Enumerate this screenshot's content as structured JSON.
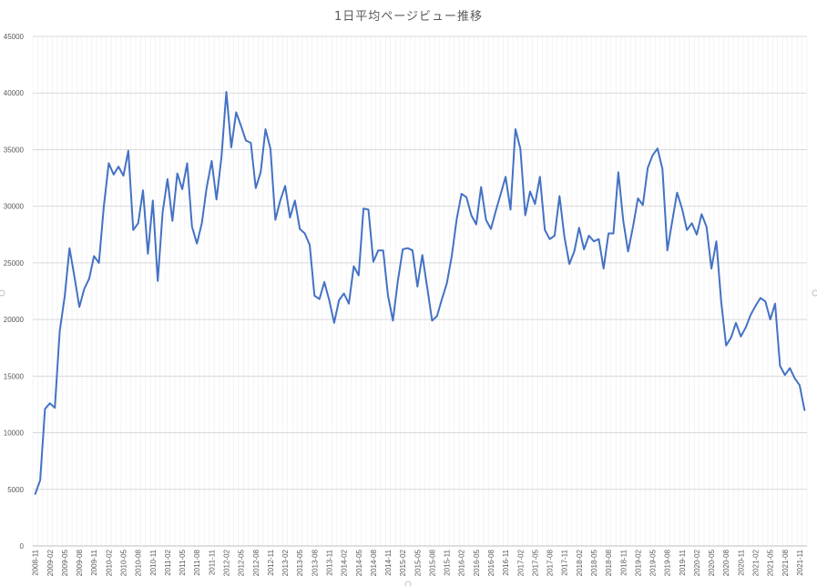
{
  "chart_data": {
    "type": "line",
    "title": "1日平均ページビュー推移",
    "xlabel": "",
    "ylabel": "",
    "ylim": [
      0,
      45000
    ],
    "yticks": [
      0,
      5000,
      10000,
      15000,
      20000,
      25000,
      30000,
      35000,
      40000,
      45000
    ],
    "grid": true,
    "legend": "none",
    "series_color": "#4472c4",
    "x": [
      "2008-11",
      "2008-12",
      "2009-01",
      "2009-02",
      "2009-03",
      "2009-04",
      "2009-05",
      "2009-06",
      "2009-07",
      "2009-08",
      "2009-09",
      "2009-10",
      "2009-11",
      "2009-12",
      "2010-01",
      "2010-02",
      "2010-03",
      "2010-04",
      "2010-05",
      "2010-06",
      "2010-07",
      "2010-08",
      "2010-09",
      "2010-10",
      "2010-11",
      "2010-12",
      "2011-01",
      "2011-02",
      "2011-03",
      "2011-04",
      "2011-05",
      "2011-06",
      "2011-07",
      "2011-08",
      "2011-09",
      "2011-10",
      "2011-11",
      "2011-12",
      "2012-01",
      "2012-02",
      "2012-03",
      "2012-04",
      "2012-05",
      "2012-06",
      "2012-07",
      "2012-08",
      "2012-09",
      "2012-10",
      "2012-11",
      "2012-12",
      "2013-01",
      "2013-02",
      "2013-03",
      "2013-04",
      "2013-05",
      "2013-06",
      "2013-07",
      "2013-08",
      "2013-09",
      "2013-10",
      "2013-11",
      "2013-12",
      "2014-01",
      "2014-02",
      "2014-03",
      "2014-04",
      "2014-05",
      "2014-06",
      "2014-07",
      "2014-08",
      "2014-09",
      "2014-10",
      "2014-11",
      "2014-12",
      "2015-01",
      "2015-02",
      "2015-03",
      "2015-04",
      "2015-05",
      "2015-06",
      "2015-07",
      "2015-08",
      "2015-09",
      "2015-10",
      "2015-11",
      "2015-12",
      "2016-01",
      "2016-02",
      "2016-03",
      "2016-04",
      "2016-05",
      "2016-06",
      "2016-07",
      "2016-08",
      "2016-09",
      "2016-10",
      "2016-11",
      "2016-12",
      "2017-01",
      "2017-02",
      "2017-03",
      "2017-04",
      "2017-05",
      "2017-06",
      "2017-07",
      "2017-08",
      "2017-09",
      "2017-10",
      "2017-11",
      "2017-12",
      "2018-01",
      "2018-02",
      "2018-03",
      "2018-04",
      "2018-05",
      "2018-06",
      "2018-07",
      "2018-08",
      "2018-09",
      "2018-10",
      "2018-11",
      "2018-12",
      "2019-01",
      "2019-02",
      "2019-03",
      "2019-04",
      "2019-05",
      "2019-06",
      "2019-07",
      "2019-08",
      "2019-09",
      "2019-10",
      "2019-11",
      "2019-12",
      "2020-01",
      "2020-02",
      "2020-03",
      "2020-04",
      "2020-05",
      "2020-06",
      "2020-07",
      "2020-08",
      "2020-09",
      "2020-10",
      "2020-11",
      "2020-12",
      "2021-01",
      "2021-02",
      "2021-03",
      "2021-04",
      "2021-05",
      "2021-06",
      "2021-07",
      "2021-08",
      "2021-09",
      "2021-10",
      "2021-11",
      "2021-12"
    ],
    "x_tick_labels": [
      "2008-11",
      "2009-02",
      "2009-05",
      "2009-08",
      "2009-11",
      "2010-02",
      "2010-05",
      "2010-08",
      "2010-11",
      "2011-02",
      "2011-05",
      "2011-08",
      "2011-11",
      "2012-02",
      "2012-05",
      "2012-08",
      "2012-11",
      "2013-02",
      "2013-05",
      "2013-08",
      "2013-11",
      "2014-02",
      "2014-05",
      "2014-08",
      "2014-11",
      "2015-02",
      "2015-05",
      "2015-08",
      "2015-11",
      "2016-02",
      "2016-05",
      "2016-08",
      "2016-11",
      "2017-02",
      "2017-05",
      "2017-08",
      "2017-11",
      "2018-02",
      "2018-05",
      "2018-08",
      "2018-11",
      "2019-02",
      "2019-05",
      "2019-08",
      "2019-11",
      "2020-02",
      "2020-05",
      "2020-08",
      "2020-11",
      "2021-02",
      "2021-05",
      "2021-08",
      "2021-11"
    ],
    "series": [
      {
        "values": [
          4600,
          5800,
          12100,
          12600,
          12200,
          19000,
          22000,
          26300,
          23800,
          21100,
          22700,
          23600,
          25600,
          25000,
          30000,
          33800,
          32800,
          33500,
          32700,
          34900,
          27900,
          28500,
          31400,
          25800,
          30500,
          23400,
          29500,
          32400,
          28700,
          32900,
          31500,
          33800,
          28200,
          26700,
          28500,
          31700,
          34000,
          30600,
          34300,
          40100,
          35200,
          38300,
          37100,
          35800,
          35600,
          31600,
          33000,
          36800,
          35100,
          28800,
          30500,
          31800,
          29000,
          30500,
          28000,
          27600,
          26600,
          22100,
          21800,
          23300,
          21700,
          19700,
          21700,
          22300,
          21400,
          24700,
          23900,
          29800,
          29700,
          25100,
          26100,
          26100,
          22100,
          19900,
          23400,
          26200,
          26300,
          26100,
          22900,
          25700,
          22800,
          19900,
          20300,
          21800,
          23200,
          25600,
          28800,
          31100,
          30800,
          29200,
          28400,
          31700,
          28800,
          28000,
          29600,
          31100,
          32600,
          29700,
          36800,
          35100,
          29200,
          31300,
          30200,
          32600,
          27900,
          27100,
          27400,
          30900,
          27300,
          24900,
          26000,
          28100,
          26200,
          27400,
          26900,
          27100,
          24500,
          27600,
          27600,
          33000,
          28700,
          26000,
          28200,
          30700,
          30100,
          33400,
          34500,
          35100,
          33300,
          26100,
          28700,
          31200,
          29800,
          27900,
          28500,
          27500,
          29300,
          28200,
          24500,
          26900,
          21500,
          17700,
          18400,
          19700,
          18500,
          19300,
          20400,
          21200,
          21900,
          21600,
          20000,
          21400,
          15900,
          15100,
          15700,
          14800,
          14200,
          12000
        ]
      }
    ]
  }
}
